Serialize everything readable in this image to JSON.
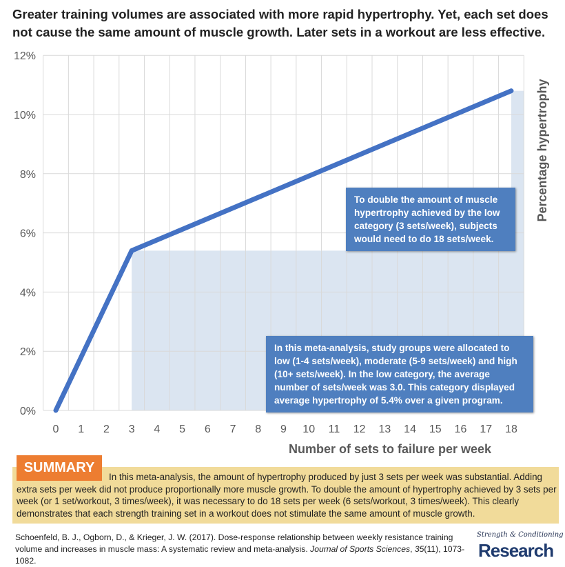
{
  "title": "Greater training volumes are associated with more rapid hypertrophy. Yet, each set does not cause the same amount of muscle growth. Later sets in a workout are less effective.",
  "chart_data": {
    "type": "line",
    "x": [
      0,
      3,
      18
    ],
    "y": [
      0,
      5.4,
      10.8
    ],
    "xlabel": "Number of sets to failure per week",
    "ylabel": "Percentage hypertrophy",
    "xticks": [
      "0",
      "1",
      "2",
      "3",
      "4",
      "5",
      "6",
      "7",
      "8",
      "9",
      "10",
      "11",
      "12",
      "13",
      "14",
      "15",
      "16",
      "17",
      "18"
    ],
    "yticks": [
      "0%",
      "2%",
      "4%",
      "6%",
      "8%",
      "10%",
      "12%"
    ],
    "xlim": [
      0,
      18
    ],
    "ylim": [
      0,
      12
    ],
    "shaded_regions": [
      {
        "x": [
          3,
          18
        ],
        "y": [
          0,
          5.4
        ]
      },
      {
        "x": [
          18,
          18.5
        ],
        "y": [
          0,
          10.8
        ]
      }
    ],
    "line_color": "#4472c4",
    "shade_color": "#dbe5f1",
    "grid": true
  },
  "notes": {
    "double": "To double the amount of muscle hypertrophy achieved by the low category (3 sets/week), subjects would need to do 18 sets/week.",
    "meta": "In this meta-analysis, study groups were allocated to low (1-4 sets/week), moderate (5-9 sets/week) and high (10+ sets/week). In the low category, the average number of sets/week was 3.0. This category displayed average hypertrophy of 5.4% over a given program."
  },
  "summary": {
    "label": "SUMMARY",
    "text": "In this meta-analysis, the amount of hypertrophy produced by just 3 sets per week was substantial. Adding extra sets per week did not produce proportionally more muscle growth. To double the amount of hypertrophy achieved by 3 sets per week (or 1 set/workout, 3 times/week), it was necessary to do 18 sets per week (6 sets/workout, 3 times/week). This clearly demonstrates that each strength training set in a workout does not stimulate the same amount of muscle growth."
  },
  "citation": {
    "pre": "Schoenfeld, B. J., Ogborn, D., & Krieger, J. W. (2017). Dose-response relationship between weekly resistance training volume and increases in muscle mass: A systematic review and meta-analysis. ",
    "journal": "Journal of Sports Sciences",
    "vol": "35",
    "post": "(11), 1073-1082."
  },
  "logo": {
    "line1": "Strength & Conditioning",
    "line2": "Research"
  }
}
